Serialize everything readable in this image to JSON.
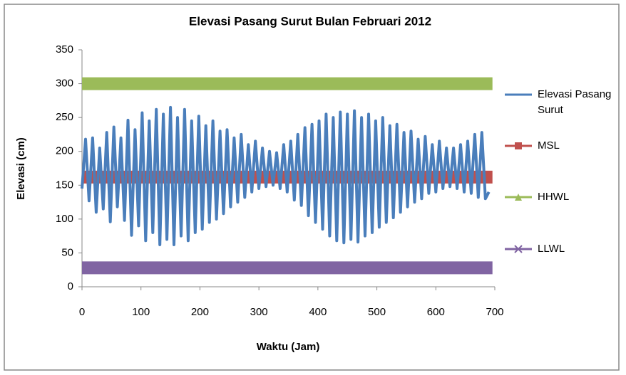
{
  "chart_data": {
    "type": "line",
    "title": "Elevasi Pasang Surut Bulan Februari 2012",
    "xlabel": "Waktu (Jam)",
    "ylabel": "Elevasi (cm)",
    "xlim": [
      0,
      700
    ],
    "xticks": [
      0,
      100,
      200,
      300,
      400,
      500,
      600,
      700
    ],
    "ylim": [
      0,
      350
    ],
    "yticks": [
      0,
      50,
      100,
      150,
      200,
      250,
      300,
      350
    ],
    "grid": false,
    "legend": "right",
    "series": [
      {
        "name": "Elevasi Pasang Surut",
        "color": "#4a7ebb",
        "marker": "none",
        "x": [
          0,
          6,
          12,
          18,
          24,
          30,
          36,
          42,
          48,
          54,
          60,
          66,
          72,
          78,
          84,
          90,
          96,
          102,
          108,
          114,
          120,
          126,
          132,
          138,
          144,
          150,
          156,
          162,
          168,
          174,
          180,
          186,
          192,
          198,
          204,
          210,
          216,
          222,
          228,
          234,
          240,
          246,
          252,
          258,
          264,
          270,
          276,
          282,
          288,
          294,
          300,
          306,
          312,
          318,
          324,
          330,
          336,
          342,
          348,
          354,
          360,
          366,
          372,
          378,
          384,
          390,
          396,
          402,
          408,
          414,
          420,
          426,
          432,
          438,
          444,
          450,
          456,
          462,
          468,
          474,
          480,
          486,
          492,
          498,
          504,
          510,
          516,
          522,
          528,
          534,
          540,
          546,
          552,
          558,
          564,
          570,
          576,
          582,
          588,
          594,
          600,
          606,
          612,
          618,
          624,
          630,
          636,
          642,
          648,
          654,
          660,
          666,
          672,
          678,
          684,
          690
        ],
        "values": [
          145,
          218,
          127,
          220,
          110,
          205,
          115,
          228,
          96,
          236,
          118,
          220,
          98,
          246,
          76,
          232,
          90,
          257,
          68,
          245,
          80,
          262,
          62,
          255,
          70,
          265,
          62,
          250,
          75,
          262,
          68,
          245,
          80,
          252,
          85,
          238,
          95,
          245,
          100,
          230,
          108,
          232,
          118,
          220,
          125,
          225,
          132,
          210,
          140,
          215,
          145,
          205,
          148,
          200,
          150,
          198,
          145,
          210,
          140,
          215,
          128,
          225,
          120,
          235,
          105,
          240,
          95,
          245,
          85,
          255,
          75,
          250,
          68,
          258,
          65,
          255,
          70,
          260,
          66,
          250,
          75,
          255,
          80,
          245,
          88,
          250,
          95,
          238,
          102,
          240,
          110,
          228,
          118,
          230,
          125,
          218,
          130,
          222,
          138,
          210,
          140,
          215,
          145,
          205,
          148,
          205,
          145,
          210,
          140,
          215,
          138,
          225,
          132,
          228,
          130,
          140
        ]
      },
      {
        "name": "MSL",
        "color": "#c0504d",
        "marker": "square",
        "x": [
          0,
          696
        ],
        "values": [
          162,
          162
        ]
      },
      {
        "name": "HHWL",
        "color": "#9bbb59",
        "marker": "triangle",
        "x": [
          0,
          696
        ],
        "values": [
          300,
          300
        ]
      },
      {
        "name": "LLWL",
        "color": "#8064a2",
        "marker": "x",
        "x": [
          0,
          696
        ],
        "values": [
          28,
          28
        ]
      }
    ]
  }
}
